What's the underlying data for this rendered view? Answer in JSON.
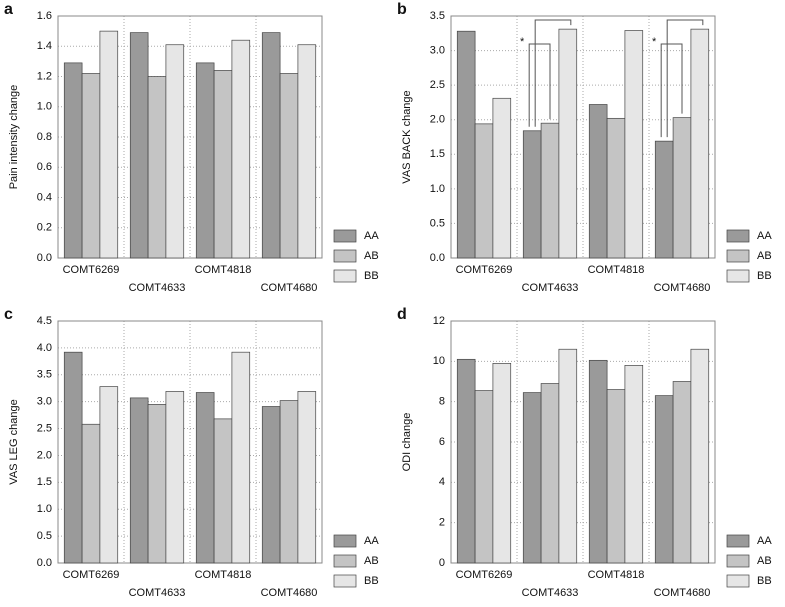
{
  "chart_data": [
    {
      "type": "bar",
      "panel": "a",
      "ylabel": "Pain intensity change",
      "categories": [
        "COMT6269",
        "COMT4633",
        "COMT4818",
        "COMT4680"
      ],
      "series": [
        {
          "name": "AA",
          "color": "#9a9a9a",
          "values": [
            1.29,
            1.49,
            1.29,
            1.49
          ]
        },
        {
          "name": "AB",
          "color": "#c4c4c4",
          "values": [
            1.22,
            1.2,
            1.24,
            1.22
          ]
        },
        {
          "name": "BB",
          "color": "#e6e6e6",
          "values": [
            1.5,
            1.41,
            1.44,
            1.41
          ]
        }
      ],
      "ylim": [
        0,
        1.6
      ],
      "yticks": [
        {
          "value": 0,
          "label": "0.0"
        },
        0.2,
        0.4,
        0.6,
        0.8,
        {
          "value": 1,
          "label": "1.0"
        },
        1.2,
        1.4,
        1.6
      ],
      "grid": true,
      "legend": "right"
    },
    {
      "type": "bar",
      "panel": "b",
      "ylabel": "VAS BACK change",
      "categories": [
        "COMT6269",
        "COMT4633",
        "COMT4818",
        "COMT4680"
      ],
      "series": [
        {
          "name": "AA",
          "color": "#9a9a9a",
          "values": [
            3.28,
            1.84,
            2.22,
            1.69
          ]
        },
        {
          "name": "AB",
          "color": "#c4c4c4",
          "values": [
            1.94,
            1.95,
            2.02,
            2.03
          ]
        },
        {
          "name": "BB",
          "color": "#e6e6e6",
          "values": [
            2.31,
            3.31,
            3.29,
            3.31
          ]
        }
      ],
      "ylim": [
        0,
        3.5
      ],
      "yticks": [
        {
          "value": 0,
          "label": "0.0"
        },
        0.5,
        {
          "value": 1,
          "label": "1.0"
        },
        1.5,
        {
          "value": 2,
          "label": "2.0"
        },
        2.5,
        {
          "value": 3,
          "label": "3.0"
        },
        3.5
      ],
      "grid": true,
      "legend": "right",
      "annotations": [
        "*",
        "*"
      ]
    },
    {
      "type": "bar",
      "panel": "c",
      "ylabel": "VAS LEG change",
      "categories": [
        "COMT6269",
        "COMT4633",
        "COMT4818",
        "COMT4680"
      ],
      "series": [
        {
          "name": "AA",
          "color": "#9a9a9a",
          "values": [
            3.92,
            3.07,
            3.17,
            2.91
          ]
        },
        {
          "name": "AB",
          "color": "#c4c4c4",
          "values": [
            2.58,
            2.95,
            2.68,
            3.02
          ]
        },
        {
          "name": "BB",
          "color": "#e6e6e6",
          "values": [
            3.28,
            3.19,
            3.92,
            3.19
          ]
        }
      ],
      "ylim": [
        0,
        4.5
      ],
      "yticks": [
        {
          "value": 0,
          "label": "0.0"
        },
        0.5,
        {
          "value": 1,
          "label": "1.0"
        },
        1.5,
        {
          "value": 2,
          "label": "2.0"
        },
        2.5,
        {
          "value": 3,
          "label": "3.0"
        },
        3.5,
        {
          "value": 4,
          "label": "4.0"
        },
        4.5
      ],
      "grid": true,
      "legend": "right"
    },
    {
      "type": "bar",
      "panel": "d",
      "ylabel": "ODI change",
      "categories": [
        "COMT6269",
        "COMT4633",
        "COMT4818",
        "COMT4680"
      ],
      "series": [
        {
          "name": "AA",
          "color": "#9a9a9a",
          "values": [
            10.1,
            8.45,
            10.05,
            8.3
          ]
        },
        {
          "name": "AB",
          "color": "#c4c4c4",
          "values": [
            8.55,
            8.9,
            8.6,
            9.0
          ]
        },
        {
          "name": "BB",
          "color": "#e6e6e6",
          "values": [
            9.9,
            10.6,
            9.8,
            10.6
          ]
        }
      ],
      "ylim": [
        0,
        12
      ],
      "yticks": [
        0,
        2,
        4,
        6,
        8,
        10,
        12
      ],
      "grid": true,
      "legend": "right"
    }
  ]
}
